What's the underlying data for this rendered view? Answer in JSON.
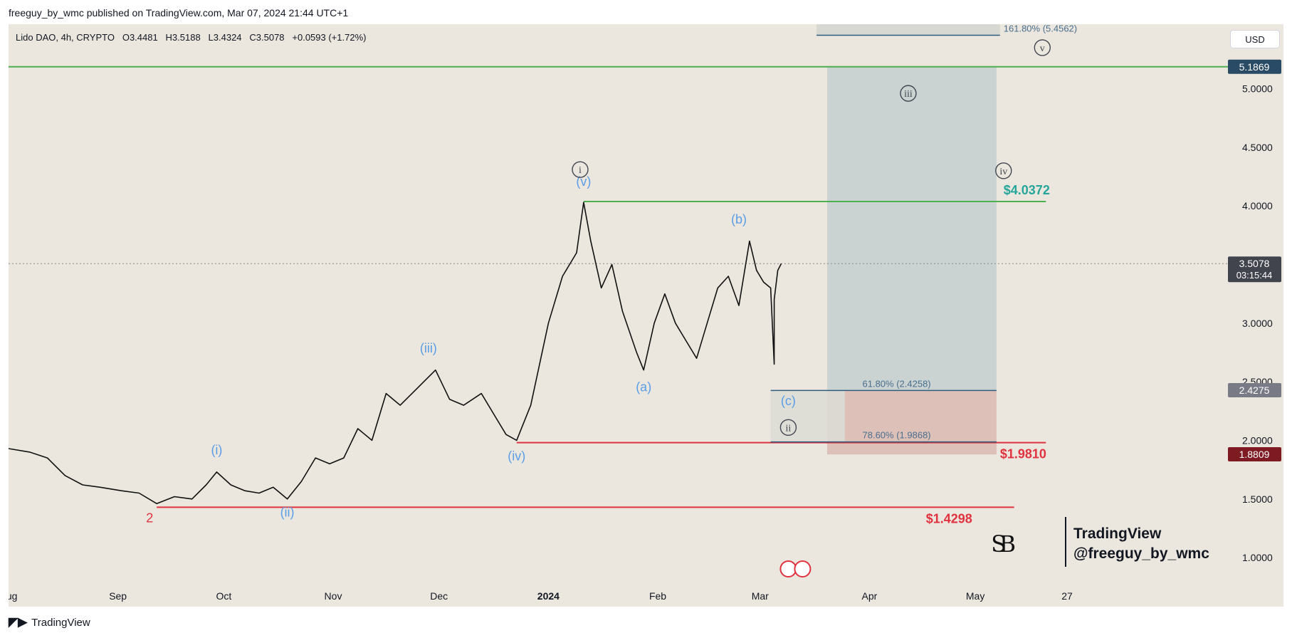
{
  "header": {
    "published": "freeguy_by_wmc published on TradingView.com, Mar 07, 2024 21:44 UTC+1",
    "symbol": "Lido DAO, 4h, CRYPTO",
    "open": "O3.4481",
    "high": "H3.5188",
    "low": "L3.4324",
    "close": "C3.5078",
    "change": "+0.0593 (+1.72%)"
  },
  "currency_button": "USD",
  "footer_brand": "TradingView",
  "watermark": {
    "name": "TradingView",
    "handle": "@freeguy_by_wmc",
    "logo_letters": "SB"
  },
  "colors": {
    "background": "#ebe7de",
    "green_level": "#4caf50",
    "red_level": "#e0323f",
    "wave_blue": "#5a9de6",
    "wave_circle": "#434651",
    "target_zone": "#c4cfcf",
    "stop_zone": "#d9b7ae",
    "price_label": "#41434d",
    "green_label": "#26a69a"
  },
  "chart_data": {
    "type": "line",
    "title": "Lido DAO, 4h, CRYPTO",
    "xlabel": "",
    "ylabel": "",
    "ylim": [
      0.8,
      5.55
    ],
    "x_ticks": [
      {
        "label": "Aug",
        "x": "2023-08-01"
      },
      {
        "label": "Sep",
        "x": "2023-09-01"
      },
      {
        "label": "Oct",
        "x": "2023-10-01"
      },
      {
        "label": "Nov",
        "x": "2023-11-01"
      },
      {
        "label": "Dec",
        "x": "2023-12-01"
      },
      {
        "label": "2024",
        "x": "2024-01-01",
        "bold": true
      },
      {
        "label": "Feb",
        "x": "2024-02-01"
      },
      {
        "label": "Mar",
        "x": "2024-03-01"
      },
      {
        "label": "Apr",
        "x": "2024-04-01"
      },
      {
        "label": "May",
        "x": "2024-05-01"
      },
      {
        "label": "27",
        "x": "2024-05-27"
      }
    ],
    "y_ticks": [
      "1.0000",
      "1.5000",
      "2.0000",
      "2.5000",
      "3.0000",
      "4.0000",
      "4.5000",
      "5.0000"
    ],
    "series": [
      {
        "values": [
          [
            "2023-08-01",
            1.93
          ],
          [
            "2023-08-07",
            1.9
          ],
          [
            "2023-08-12",
            1.85
          ],
          [
            "2023-08-17",
            1.7
          ],
          [
            "2023-08-22",
            1.62
          ],
          [
            "2023-08-27",
            1.6
          ],
          [
            "2023-09-02",
            1.57
          ],
          [
            "2023-09-07",
            1.55
          ],
          [
            "2023-09-12",
            1.46
          ],
          [
            "2023-09-17",
            1.52
          ],
          [
            "2023-09-22",
            1.5
          ],
          [
            "2023-09-26",
            1.62
          ],
          [
            "2023-09-29",
            1.73
          ],
          [
            "2023-10-03",
            1.62
          ],
          [
            "2023-10-07",
            1.57
          ],
          [
            "2023-10-11",
            1.55
          ],
          [
            "2023-10-15",
            1.6
          ],
          [
            "2023-10-19",
            1.5
          ],
          [
            "2023-10-23",
            1.65
          ],
          [
            "2023-10-27",
            1.85
          ],
          [
            "2023-10-31",
            1.8
          ],
          [
            "2023-11-04",
            1.85
          ],
          [
            "2023-11-08",
            2.1
          ],
          [
            "2023-11-12",
            2.0
          ],
          [
            "2023-11-16",
            2.4
          ],
          [
            "2023-11-20",
            2.3
          ],
          [
            "2023-11-25",
            2.45
          ],
          [
            "2023-11-30",
            2.6
          ],
          [
            "2023-12-04",
            2.35
          ],
          [
            "2023-12-08",
            2.3
          ],
          [
            "2023-12-13",
            2.4
          ],
          [
            "2023-12-17",
            2.2
          ],
          [
            "2023-12-20",
            2.05
          ],
          [
            "2023-12-23",
            2.0
          ],
          [
            "2023-12-27",
            2.3
          ],
          [
            "2024-01-01",
            3.0
          ],
          [
            "2024-01-05",
            3.4
          ],
          [
            "2024-01-09",
            3.6
          ],
          [
            "2024-01-11",
            4.03
          ],
          [
            "2024-01-13",
            3.7
          ],
          [
            "2024-01-16",
            3.3
          ],
          [
            "2024-01-19",
            3.5
          ],
          [
            "2024-01-22",
            3.1
          ],
          [
            "2024-01-26",
            2.75
          ],
          [
            "2024-01-28",
            2.6
          ],
          [
            "2024-01-31",
            3.0
          ],
          [
            "2024-02-03",
            3.25
          ],
          [
            "2024-02-06",
            3.0
          ],
          [
            "2024-02-09",
            2.85
          ],
          [
            "2024-02-12",
            2.7
          ],
          [
            "2024-02-15",
            3.0
          ],
          [
            "2024-02-18",
            3.3
          ],
          [
            "2024-02-21",
            3.4
          ],
          [
            "2024-02-24",
            3.15
          ],
          [
            "2024-02-27",
            3.7
          ],
          [
            "2024-02-29",
            3.45
          ],
          [
            "2024-03-02",
            3.35
          ],
          [
            "2024-03-04",
            3.3
          ],
          [
            "2024-03-05",
            2.65
          ],
          [
            "2024-03-05",
            3.2
          ],
          [
            "2024-03-06",
            3.45
          ],
          [
            "2024-03-07",
            3.5078
          ]
        ]
      }
    ],
    "horizontal_levels": [
      {
        "label": "5.1869",
        "value": 5.1869,
        "color": "#4caf50"
      },
      {
        "label": "$4.0372",
        "value": 4.0372,
        "color": "#4caf50"
      },
      {
        "label": "$1.9810",
        "value": 1.981,
        "color": "#e0323f"
      },
      {
        "label": "$1.4298",
        "value": 1.4298,
        "color": "#e0323f"
      }
    ],
    "fib_levels": [
      {
        "label": "161.80% (5.4562)",
        "value": 5.4562
      },
      {
        "label": "61.80% (2.4258)",
        "value": 2.4258
      },
      {
        "label": "78.60% (1.9868)",
        "value": 1.9868
      }
    ],
    "price_axis_labels": [
      {
        "text": "5.1869",
        "value": 5.1869,
        "style": "blue"
      },
      {
        "text": "3.5078",
        "sub": "03:15:44",
        "value": 3.5078,
        "style": "dark"
      },
      {
        "text": "2.4275",
        "value": 2.4275,
        "style": "gray"
      },
      {
        "text": "1.8809",
        "value": 1.8809,
        "style": "red"
      }
    ],
    "wave_labels": [
      {
        "text": "2",
        "x": "2023-09-10",
        "y": 1.3,
        "style": "red"
      },
      {
        "text": "(i)",
        "x": "2023-09-29",
        "y": 1.88,
        "style": "blue"
      },
      {
        "text": "(ii)",
        "x": "2023-10-19",
        "y": 1.35,
        "style": "blue"
      },
      {
        "text": "(iii)",
        "x": "2023-11-28",
        "y": 2.75,
        "style": "blue"
      },
      {
        "text": "(iv)",
        "x": "2023-12-23",
        "y": 1.83,
        "style": "blue"
      },
      {
        "text": "(v)",
        "x": "2024-01-11",
        "y": 4.17,
        "style": "blue"
      },
      {
        "text": "i",
        "x": "2024-01-10",
        "y": 4.31,
        "style": "circle"
      },
      {
        "text": "(a)",
        "x": "2024-01-28",
        "y": 2.42,
        "style": "blue"
      },
      {
        "text": "(b)",
        "x": "2024-02-24",
        "y": 3.85,
        "style": "blue"
      },
      {
        "text": "(c)",
        "x": "2024-03-09",
        "y": 2.3,
        "style": "blue"
      },
      {
        "text": "ii",
        "x": "2024-03-09",
        "y": 2.11,
        "style": "circle"
      },
      {
        "text": "iii",
        "x": "2024-04-12",
        "y": 4.96,
        "style": "circle"
      },
      {
        "text": "iv",
        "x": "2024-05-09",
        "y": 4.3,
        "style": "circle"
      },
      {
        "text": "v",
        "x": "2024-05-20",
        "y": 5.35,
        "style": "circle"
      }
    ],
    "zones": [
      {
        "name": "target",
        "x0": "2024-03-20",
        "x1": "2024-05-07",
        "y0": 2.4258,
        "y1": 5.1869
      },
      {
        "name": "stop",
        "x0": "2024-03-20",
        "x1": "2024-05-07",
        "y0": 1.88,
        "y1": 2.4258
      },
      {
        "name": "fib-box",
        "x0": "2024-03-04",
        "x1": "2024-03-25",
        "y0": 1.9868,
        "y1": 2.4258
      },
      {
        "name": "fib-top-box",
        "x0": "2024-03-17",
        "x1": "2024-05-08",
        "y0": 5.4562,
        "y1": 5.58
      }
    ],
    "grid": false,
    "legend": "none"
  }
}
